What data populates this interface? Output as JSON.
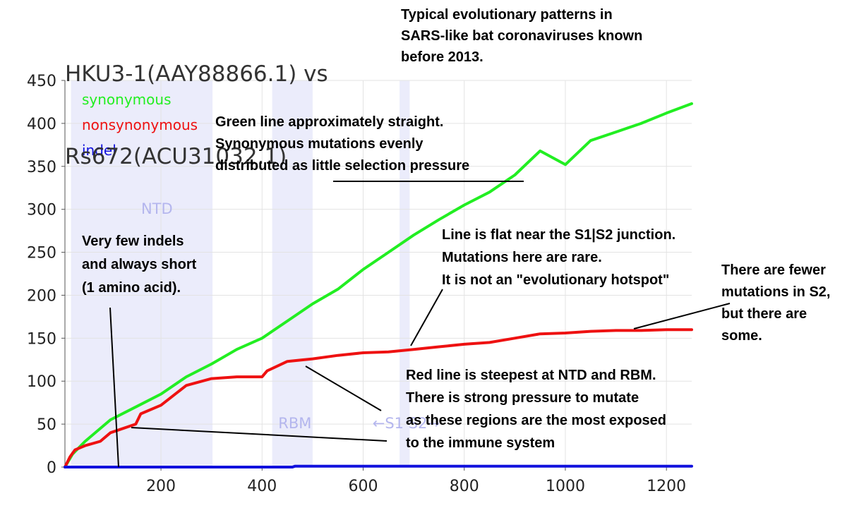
{
  "chart_data": {
    "type": "line",
    "title": [
      "HKU3-1(AAY88866.1) vs",
      "Rs672(ACU31032.1)"
    ],
    "xlim": [
      10,
      1250
    ],
    "ylim": [
      0,
      450
    ],
    "x_ticks": [
      200,
      400,
      600,
      800,
      1000,
      1200
    ],
    "y_ticks": [
      0,
      50,
      100,
      150,
      200,
      250,
      300,
      350,
      400,
      450
    ],
    "grid": true,
    "legend_position": "top-left",
    "regions": [
      {
        "label": "NTD",
        "x_start": 22,
        "x_end": 302,
        "label_x": 192,
        "label_y": 295
      },
      {
        "label": "RBM",
        "x_start": 420,
        "x_end": 500,
        "label_x": 465,
        "label_y": 45
      },
      {
        "label": "",
        "x_start": 672,
        "x_end": 692
      }
    ],
    "junction_label": {
      "text": "←S1 S2→",
      "x": 685,
      "y": 45
    },
    "series": [
      {
        "name": "synonymous",
        "color": "#22ee22",
        "x": [
          10,
          25,
          50,
          100,
          150,
          200,
          250,
          300,
          350,
          400,
          450,
          500,
          550,
          600,
          650,
          700,
          750,
          800,
          850,
          900,
          950,
          1000,
          1050,
          1100,
          1150,
          1200,
          1250
        ],
        "y": [
          0,
          15,
          30,
          55,
          70,
          85,
          105,
          120,
          137,
          150,
          170,
          190,
          207,
          230,
          250,
          270,
          288,
          305,
          320,
          340,
          368,
          352,
          380,
          390,
          400,
          412,
          423
        ]
      },
      {
        "name": "nonsynonymous",
        "color": "#ee1111",
        "x": [
          10,
          20,
          30,
          50,
          80,
          100,
          150,
          160,
          200,
          250,
          300,
          350,
          400,
          410,
          450,
          500,
          550,
          600,
          650,
          700,
          750,
          800,
          850,
          900,
          950,
          1000,
          1050,
          1100,
          1150,
          1200,
          1250
        ],
        "y": [
          0,
          12,
          20,
          25,
          30,
          40,
          50,
          62,
          72,
          95,
          103,
          105,
          105,
          112,
          123,
          126,
          130,
          133,
          134,
          137,
          140,
          143,
          145,
          150,
          155,
          156,
          158,
          159,
          159,
          160,
          160
        ]
      },
      {
        "name": "indel",
        "color": "#1111dd",
        "x": [
          10,
          460,
          465,
          1250
        ],
        "y": [
          0,
          0,
          1,
          1
        ]
      }
    ]
  },
  "annotations": [
    {
      "id": "green-line-note",
      "lines": [
        "Green line approximately straight.",
        "Synonymous mutations evenly",
        "distributed as little selection pressure"
      ]
    },
    {
      "id": "indels-note",
      "lines": [
        "Very few indels",
        "and always short",
        "(1 amino acid)."
      ]
    },
    {
      "id": "junction-note",
      "lines": [
        "Line is flat near the S1|S2 junction.",
        "Mutations here are rare.",
        "It is not an \"evolutionary hotspot\""
      ]
    },
    {
      "id": "s2-note",
      "lines": [
        "There are fewer",
        "mutations in S2,",
        "but there are",
        "some."
      ]
    },
    {
      "id": "red-line-note",
      "lines": [
        "Red line is steepest at NTD and RBM.",
        "There is strong pressure to mutate",
        "as these regions are the most exposed",
        "to the immune system"
      ]
    },
    {
      "id": "typical-note",
      "lines": [
        "Typical evolutionary patterns in",
        "SARS-like bat coronaviruses known",
        "before 2013."
      ]
    }
  ]
}
